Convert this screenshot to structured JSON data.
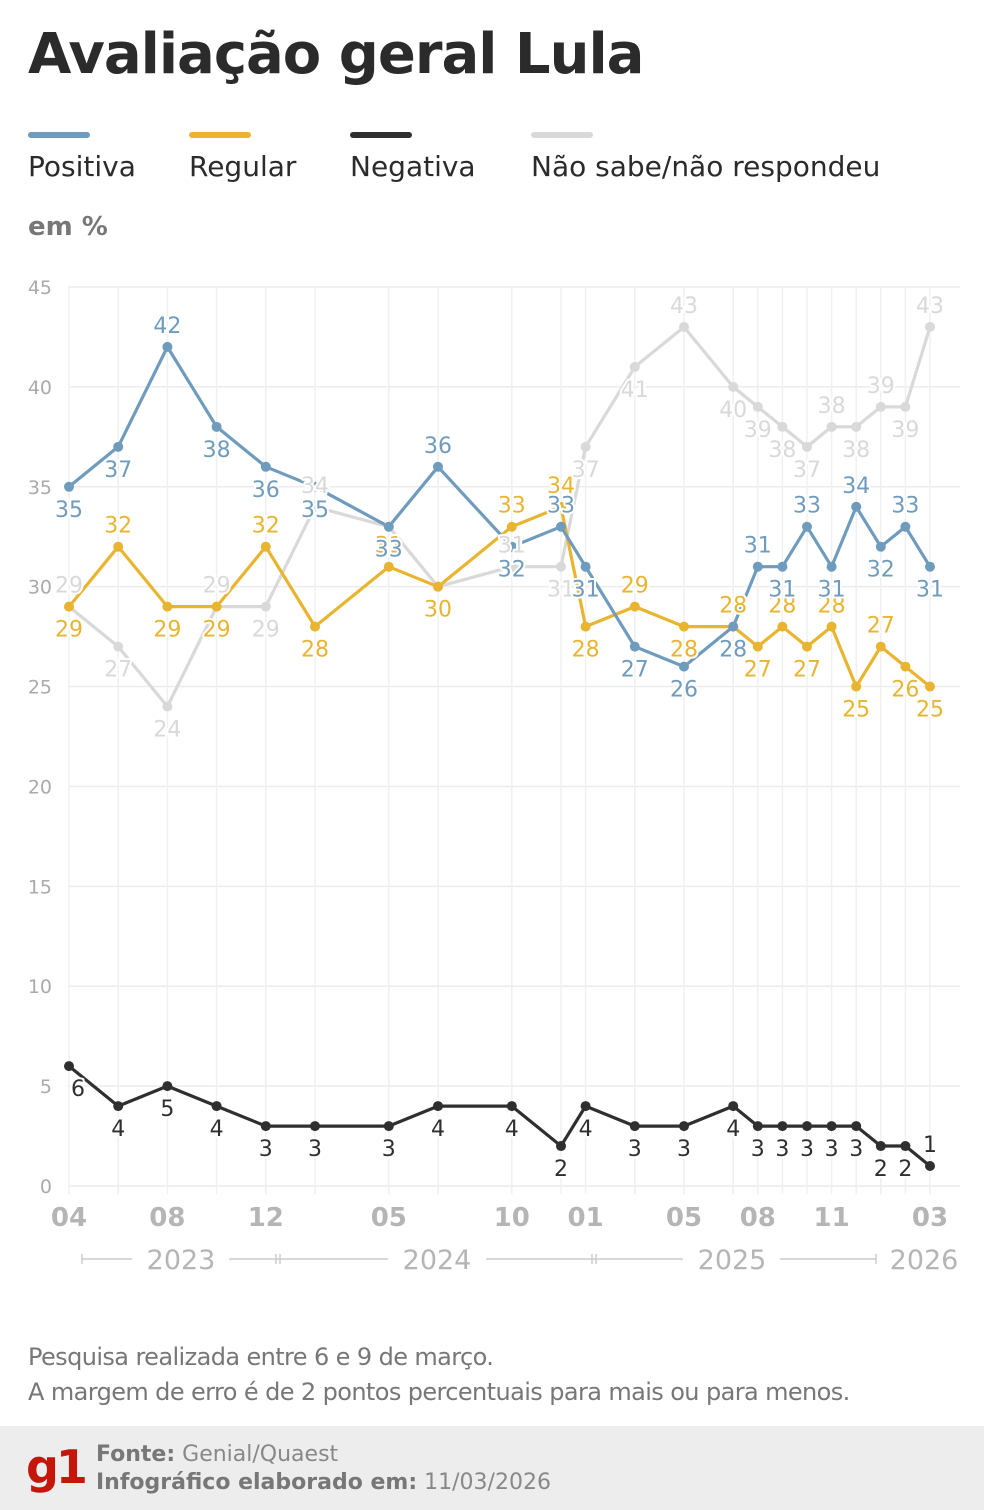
{
  "header": {
    "title": "Avaliação geral Lula",
    "unit": "em %"
  },
  "colors": {
    "positiva": "#6f9bbd",
    "regular": "#e9b531",
    "negativa": "#2f2f2f",
    "nao_sabe": "#d9d9d9",
    "brand": "#c4170c"
  },
  "chart_data": {
    "type": "line",
    "title": "Avaliação geral Lula",
    "ylabel": "em %",
    "ylim": [
      0,
      45
    ],
    "yticks": [
      0,
      5,
      10,
      15,
      20,
      25,
      30,
      35,
      40,
      45
    ],
    "grid": true,
    "legend_position": "top",
    "x": [
      "2023-04",
      "2023-06",
      "2023-08",
      "2023-10",
      "2023-12",
      "2024-02",
      "2024-05",
      "2024-07",
      "2024-10",
      "2024-12",
      "2025-01",
      "2025-03",
      "2025-05",
      "2025-07",
      "2025-08",
      "2025-09",
      "2025-10",
      "2025-11",
      "2025-12",
      "2026-01",
      "2026-02",
      "2026-03"
    ],
    "x_tick_labels": [
      {
        "x": "2023-04",
        "label": "04"
      },
      {
        "x": "2023-08",
        "label": "08"
      },
      {
        "x": "2023-12",
        "label": "12"
      },
      {
        "x": "2024-05",
        "label": "05"
      },
      {
        "x": "2024-10",
        "label": "10"
      },
      {
        "x": "2025-01",
        "label": "01"
      },
      {
        "x": "2025-05",
        "label": "05"
      },
      {
        "x": "2025-08",
        "label": "08"
      },
      {
        "x": "2025-11",
        "label": "11"
      },
      {
        "x": "2026-03",
        "label": "03"
      }
    ],
    "year_labels": [
      "2023",
      "2024",
      "2025",
      "2026"
    ],
    "series": [
      {
        "key": "positiva",
        "name": "Positiva",
        "values": [
          35,
          37,
          42,
          38,
          36,
          35,
          33,
          36,
          32,
          33,
          31,
          27,
          26,
          28,
          31,
          31,
          33,
          31,
          34,
          32,
          33,
          31
        ]
      },
      {
        "key": "regular",
        "name": "Regular",
        "values": [
          29,
          32,
          29,
          29,
          32,
          28,
          31,
          30,
          33,
          34,
          28,
          29,
          28,
          28,
          27,
          28,
          27,
          28,
          25,
          27,
          26,
          25
        ]
      },
      {
        "key": "negativa",
        "name": "Negativa",
        "values": [
          6,
          4,
          5,
          4,
          3,
          3,
          3,
          4,
          4,
          2,
          4,
          3,
          3,
          4,
          3,
          3,
          3,
          3,
          3,
          2,
          2,
          1
        ]
      },
      {
        "key": "nao_sabe",
        "name": "Não sabe/não respondeu",
        "values": [
          29,
          27,
          24,
          29,
          29,
          34,
          33,
          30,
          31,
          31,
          37,
          41,
          43,
          40,
          39,
          38,
          37,
          38,
          38,
          39,
          39,
          43
        ]
      }
    ]
  },
  "notes": {
    "line1": "Pesquisa realizada entre 6 e 9 de março.",
    "line2": "A margem de erro é de 2 pontos percentuais para mais ou para menos."
  },
  "footer": {
    "logo": "g1",
    "source_label": "Fonte:",
    "source_value": "Genial/Quaest",
    "date_label": "Infográfico elaborado em:",
    "date_value": "11/03/2026"
  }
}
